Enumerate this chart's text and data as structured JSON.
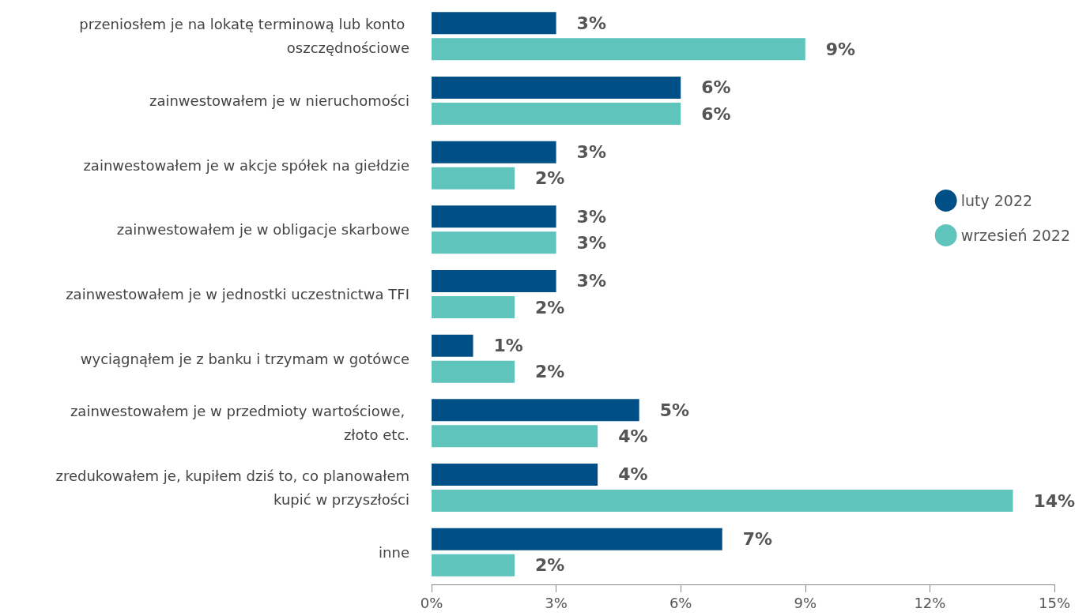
{
  "chart_data": {
    "type": "bar",
    "orientation": "horizontal",
    "categories": [
      "przeniosłem je na lokatę terminową lub konto oszczędnościowe",
      "zainwestowałem je w nieruchomości",
      "zainwestowałem je w akcje spółek na giełdzie",
      "zainwestowałem je w obligacje skarbowe",
      "zainwestowałem je w jednostki uczestnictwa TFI",
      "wyciągnąłem je z banku i trzymam w gotówce",
      "zainwestowałem je w przedmioty wartościowe, złoto etc.",
      "zredukowałem je, kupiłem dziś to, co planowałem kupić w przyszłości",
      "inne"
    ],
    "series": [
      {
        "name": "luty 2022",
        "color": "#004f86",
        "values": [
          3,
          6,
          3,
          3,
          3,
          1,
          5,
          4,
          7
        ],
        "value_labels": [
          "3%",
          "6%",
          "3%",
          "3%",
          "3%",
          "1%",
          "5%",
          "4%",
          "7%"
        ]
      },
      {
        "name": "wrzesień 2022",
        "color": "#5ec4bc",
        "values": [
          9,
          6,
          2,
          3,
          2,
          2,
          4,
          14,
          2
        ],
        "value_labels": [
          "9%",
          "6%",
          "2%",
          "3%",
          "2%",
          "2%",
          "4%",
          "14%",
          "2%"
        ]
      }
    ],
    "xlim": [
      0,
      15
    ],
    "xticks": [
      {
        "value": 0,
        "label": "0%"
      },
      {
        "value": 3,
        "label": "3%"
      },
      {
        "value": 6,
        "label": "6%"
      },
      {
        "value": 9,
        "label": "9%"
      },
      {
        "value": 12,
        "label": "12%"
      },
      {
        "value": 15,
        "label": "15%"
      }
    ],
    "grid": false,
    "legend": "right"
  }
}
